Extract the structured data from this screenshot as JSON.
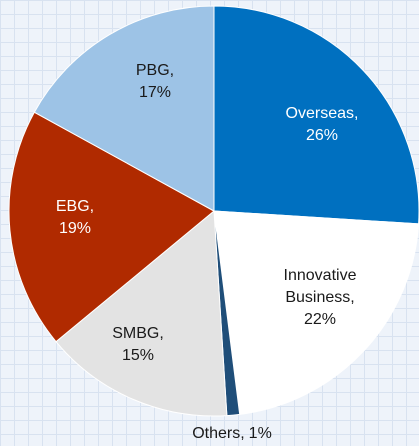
{
  "chart_data": {
    "type": "pie",
    "categories": [
      "Overseas,",
      "Innovative Business,",
      "Others,",
      "SMBG,",
      "EBG,",
      "PBG,"
    ],
    "values": [
      26,
      22,
      1,
      15,
      19,
      17
    ],
    "value_labels": [
      "26%",
      "22%",
      "1%",
      "15%",
      "19%",
      "17%"
    ],
    "colors": [
      "#0070c0",
      "#ffffff",
      "#1f4e79",
      "#e3e3e3",
      "#b02a00",
      "#9dc3e6"
    ],
    "label_colors": [
      "#ffffff",
      "#1a1a1a",
      "#1a1a1a",
      "#1a1a1a",
      "#ffffff",
      "#1a1a1a"
    ]
  }
}
